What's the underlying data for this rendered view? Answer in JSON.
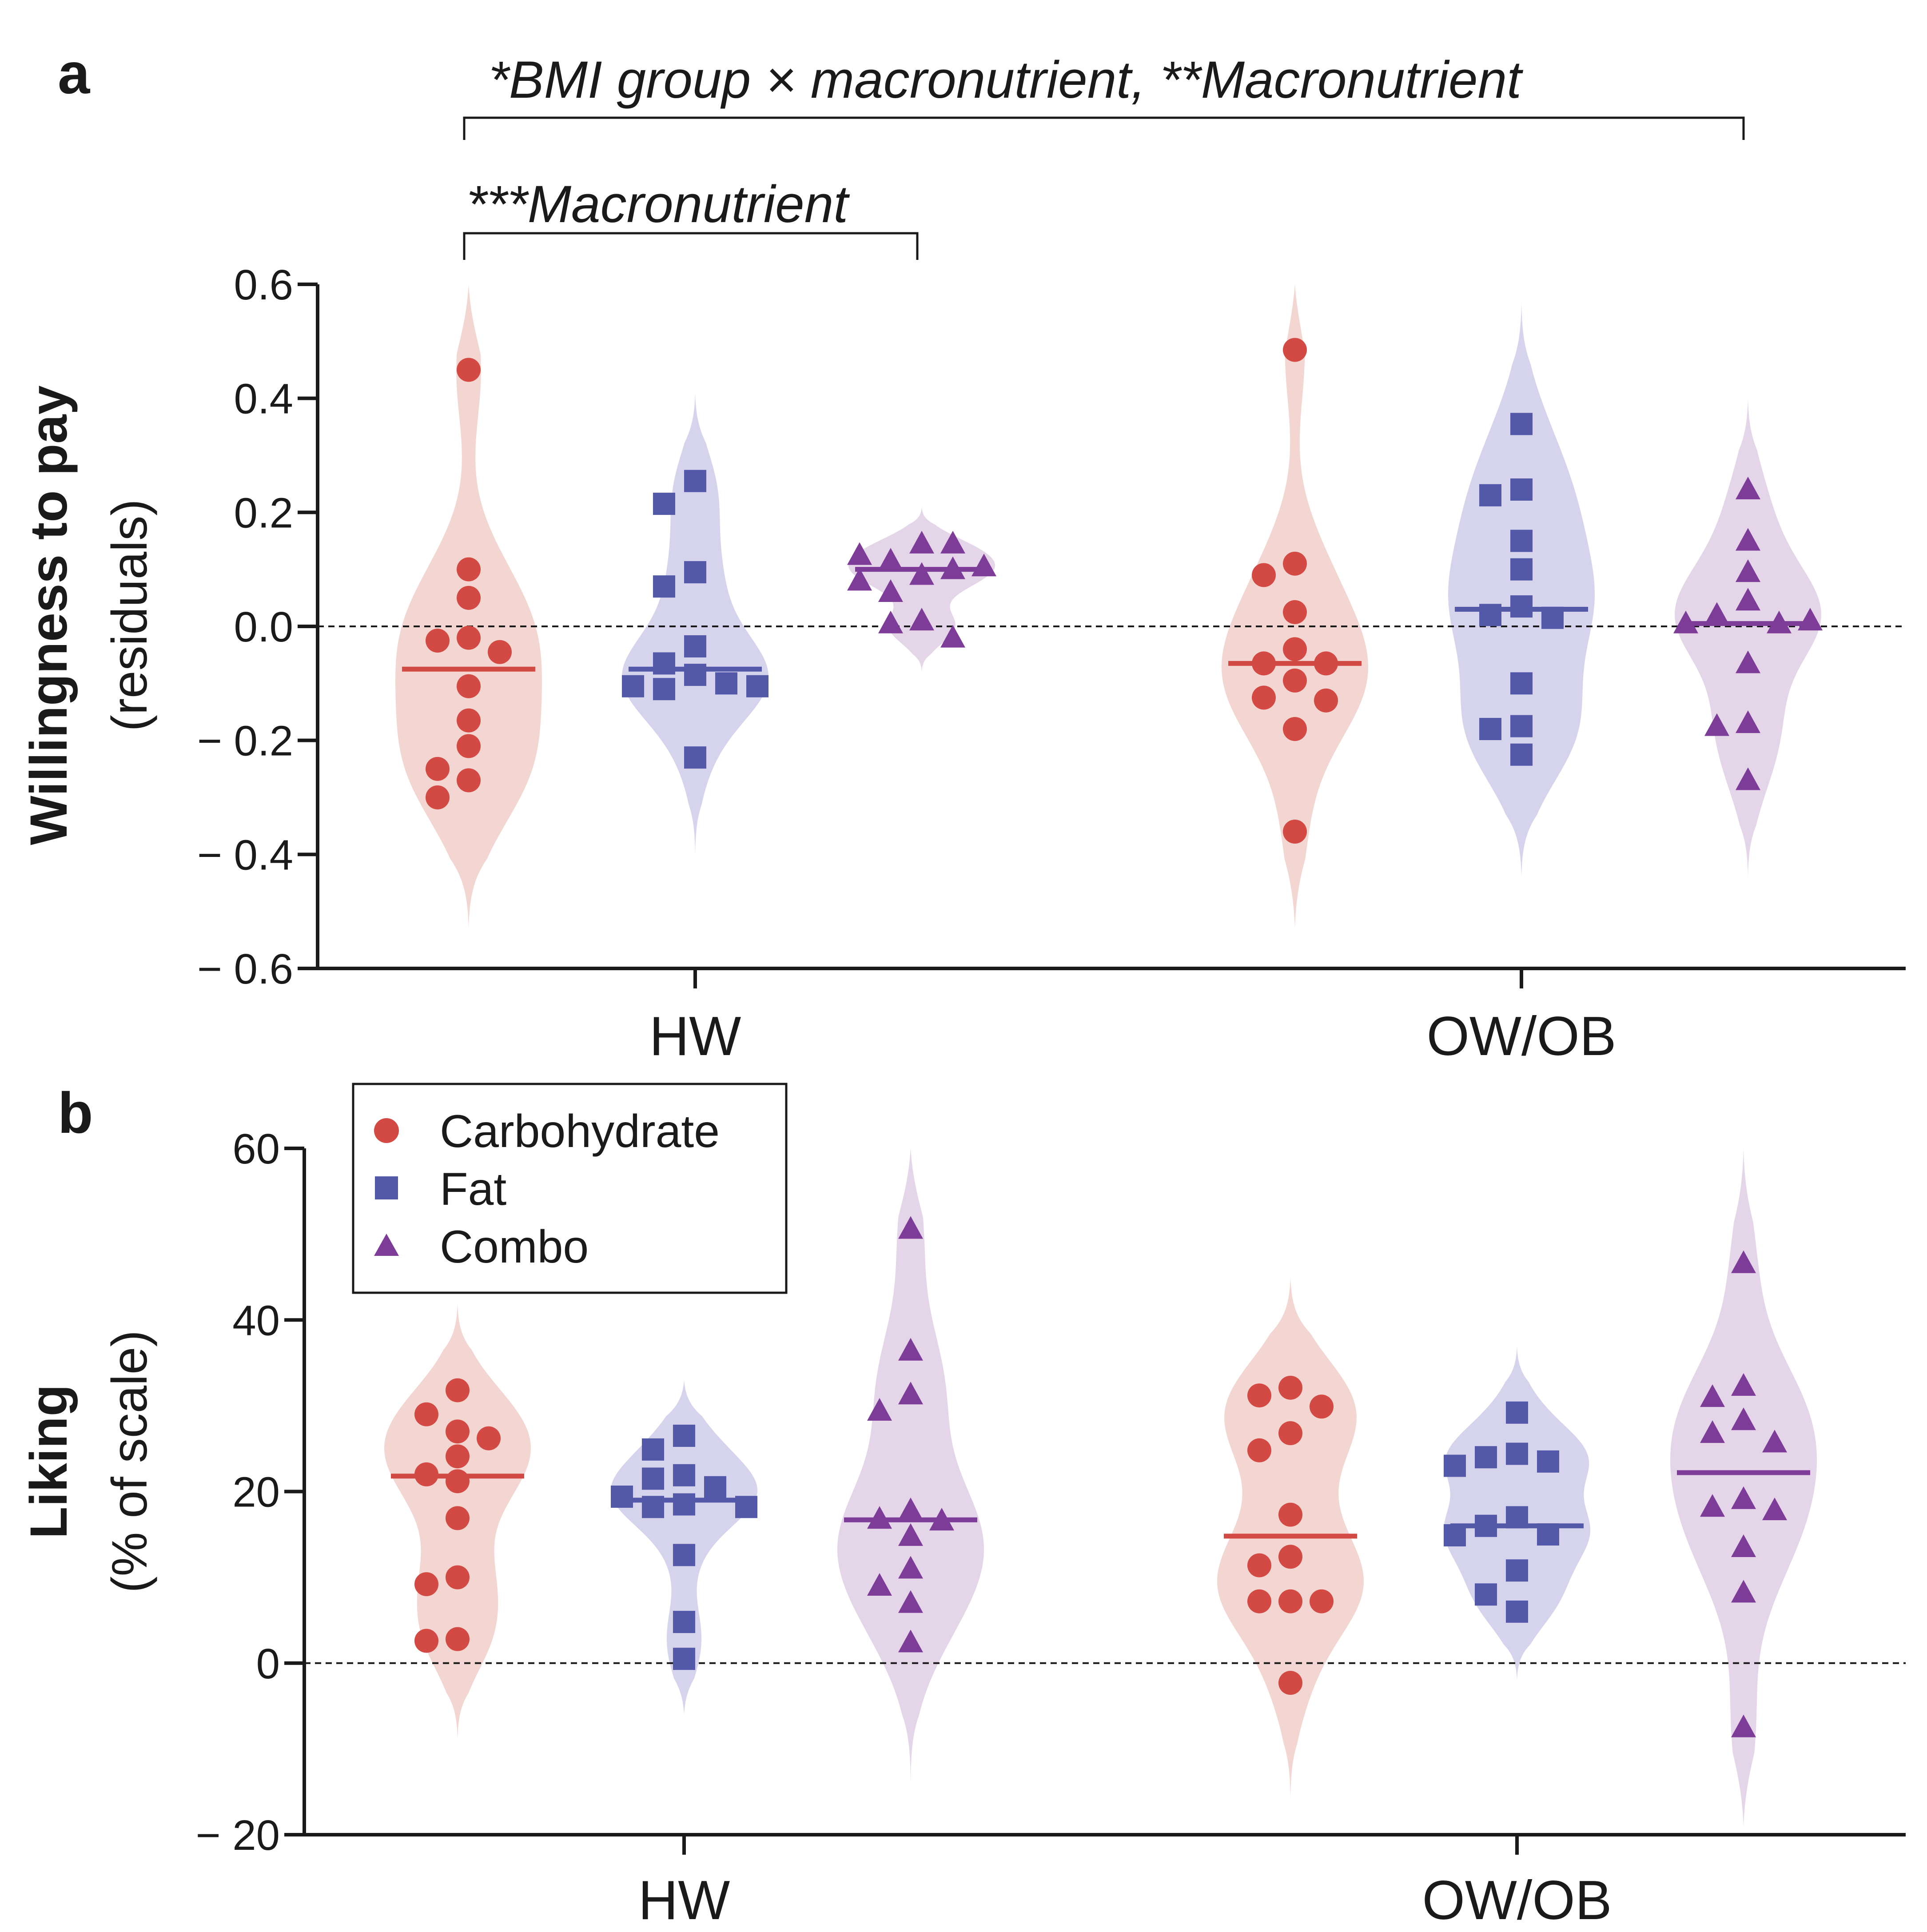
{
  "colors": {
    "Carbohydrate": "#d24a43",
    "Fat": "#5358a8",
    "Combo": "#7d3c98",
    "Carbohydrate_fill": "#f2d4cf",
    "Fat_fill": "#d4d2ec",
    "Combo_fill": "#e3d3e8"
  },
  "legend": {
    "items": [
      {
        "label": "Carbohydrate",
        "marker": "circle"
      },
      {
        "label": "Fat",
        "marker": "square"
      },
      {
        "label": "Combo",
        "marker": "triangle"
      }
    ]
  },
  "chart_data": [
    {
      "panel_label": "a",
      "type": "scatter",
      "subtype": "violin",
      "ylabel_main": "Willingness to pay",
      "ylabel_sub": "(residuals)",
      "ylim": [
        -0.6,
        0.6
      ],
      "yticks": [
        0.6,
        0.4,
        0.2,
        0.0,
        -0.2,
        -0.4,
        -0.6
      ],
      "ytick_labels": [
        "0.6",
        "0.4",
        "0.2",
        "0.0",
        "− 0.2",
        "− 0.4",
        "− 0.6"
      ],
      "categories": [
        "HW",
        "OW/OB"
      ],
      "annotations": [
        {
          "text": "*BMI group × macronutrient, **Macronutrient",
          "span": "HW Carbohydrate to OW/OB Combo"
        },
        {
          "text": "***Macronutrient",
          "span": "HW Carbohydrate to HW Combo"
        }
      ],
      "series": [
        {
          "name": "Carbohydrate",
          "group": "HW",
          "median": -0.075,
          "values": [
            0.45,
            0.1,
            0.05,
            -0.02,
            -0.025,
            -0.045,
            -0.105,
            -0.165,
            -0.21,
            -0.25,
            -0.27,
            -0.3
          ],
          "violin_range": [
            -0.53,
            0.6
          ]
        },
        {
          "name": "Fat",
          "group": "HW",
          "median": -0.075,
          "values": [
            0.255,
            0.215,
            0.095,
            0.07,
            -0.035,
            -0.065,
            -0.085,
            -0.1,
            -0.105,
            -0.11,
            -0.105,
            -0.23
          ],
          "violin_range": [
            -0.4,
            0.41
          ]
        },
        {
          "name": "Combo",
          "group": "HW",
          "median": 0.1,
          "values": [
            0.145,
            0.115,
            0.145,
            0.125,
            0.105,
            0.09,
            0.1,
            0.08,
            0.06,
            0.01,
            0.005,
            -0.02
          ],
          "violin_range": [
            -0.08,
            0.21
          ]
        },
        {
          "name": "Carbohydrate",
          "group": "OW/OB",
          "median": -0.065,
          "values": [
            0.485,
            0.11,
            0.09,
            0.025,
            -0.04,
            -0.065,
            -0.065,
            -0.095,
            -0.125,
            -0.13,
            -0.18,
            -0.36
          ],
          "violin_range": [
            -0.53,
            0.6
          ]
        },
        {
          "name": "Fat",
          "group": "OW/OB",
          "median": 0.03,
          "values": [
            0.355,
            0.24,
            0.23,
            0.15,
            0.1,
            0.035,
            0.02,
            0.015,
            -0.1,
            -0.175,
            -0.18,
            -0.225
          ],
          "violin_range": [
            -0.44,
            0.57
          ]
        },
        {
          "name": "Combo",
          "group": "OW/OB",
          "median": 0.005,
          "values": [
            0.24,
            0.15,
            0.095,
            0.045,
            0.02,
            0.005,
            0.005,
            0.01,
            -0.065,
            -0.17,
            -0.175,
            -0.27
          ],
          "violin_range": [
            -0.44,
            0.4
          ]
        }
      ]
    },
    {
      "panel_label": "b",
      "type": "scatter",
      "subtype": "violin",
      "ylabel_main": "Liking",
      "ylabel_sub": "(% of scale)",
      "ylim": [
        -20,
        60
      ],
      "yticks": [
        60,
        40,
        20,
        0,
        -20
      ],
      "ytick_labels": [
        "60",
        "40",
        "20",
        "0",
        "− 20"
      ],
      "categories": [
        "HW",
        "OW/OB"
      ],
      "series": [
        {
          "name": "Carbohydrate",
          "group": "HW",
          "median": 21.8,
          "values": [
            31.8,
            29,
            27,
            26.2,
            24.1,
            22,
            21.2,
            16.9,
            10,
            9.2,
            2.8,
            2.6
          ],
          "violin_range": [
            -9,
            42
          ]
        },
        {
          "name": "Fat",
          "group": "HW",
          "median": 19,
          "values": [
            26.5,
            24.9,
            21.9,
            21.5,
            20.5,
            19.4,
            18.5,
            18.2,
            18.2,
            12.6,
            4.8,
            0.5
          ],
          "violin_range": [
            -6,
            33
          ]
        },
        {
          "name": "Combo",
          "group": "HW",
          "median": 16.7,
          "values": [
            50.6,
            36.4,
            31.3,
            29.4,
            17.8,
            16.8,
            16.6,
            14.8,
            11,
            9,
            7,
            2.4
          ],
          "violin_range": [
            -14,
            60
          ]
        },
        {
          "name": "Carbohydrate",
          "group": "OW/OB",
          "median": 14.8,
          "values": [
            32.1,
            31.2,
            29.9,
            26.8,
            24.8,
            17.3,
            12.4,
            11.4,
            7.2,
            7.2,
            7.2,
            -2.3
          ],
          "violin_range": [
            -16,
            45
          ]
        },
        {
          "name": "Fat",
          "group": "OW/OB",
          "median": 16,
          "values": [
            29.2,
            24.4,
            24,
            23.5,
            23,
            17,
            16,
            15,
            14.9,
            10.8,
            8,
            6
          ],
          "violin_range": [
            -2,
            37
          ]
        },
        {
          "name": "Combo",
          "group": "OW/OB",
          "median": 22.2,
          "values": [
            46.6,
            32.3,
            31,
            28.3,
            26.8,
            25.7,
            19.1,
            18.2,
            17.8,
            13.5,
            8.2,
            -7.5
          ],
          "violin_range": [
            -19,
            60
          ]
        }
      ]
    }
  ]
}
